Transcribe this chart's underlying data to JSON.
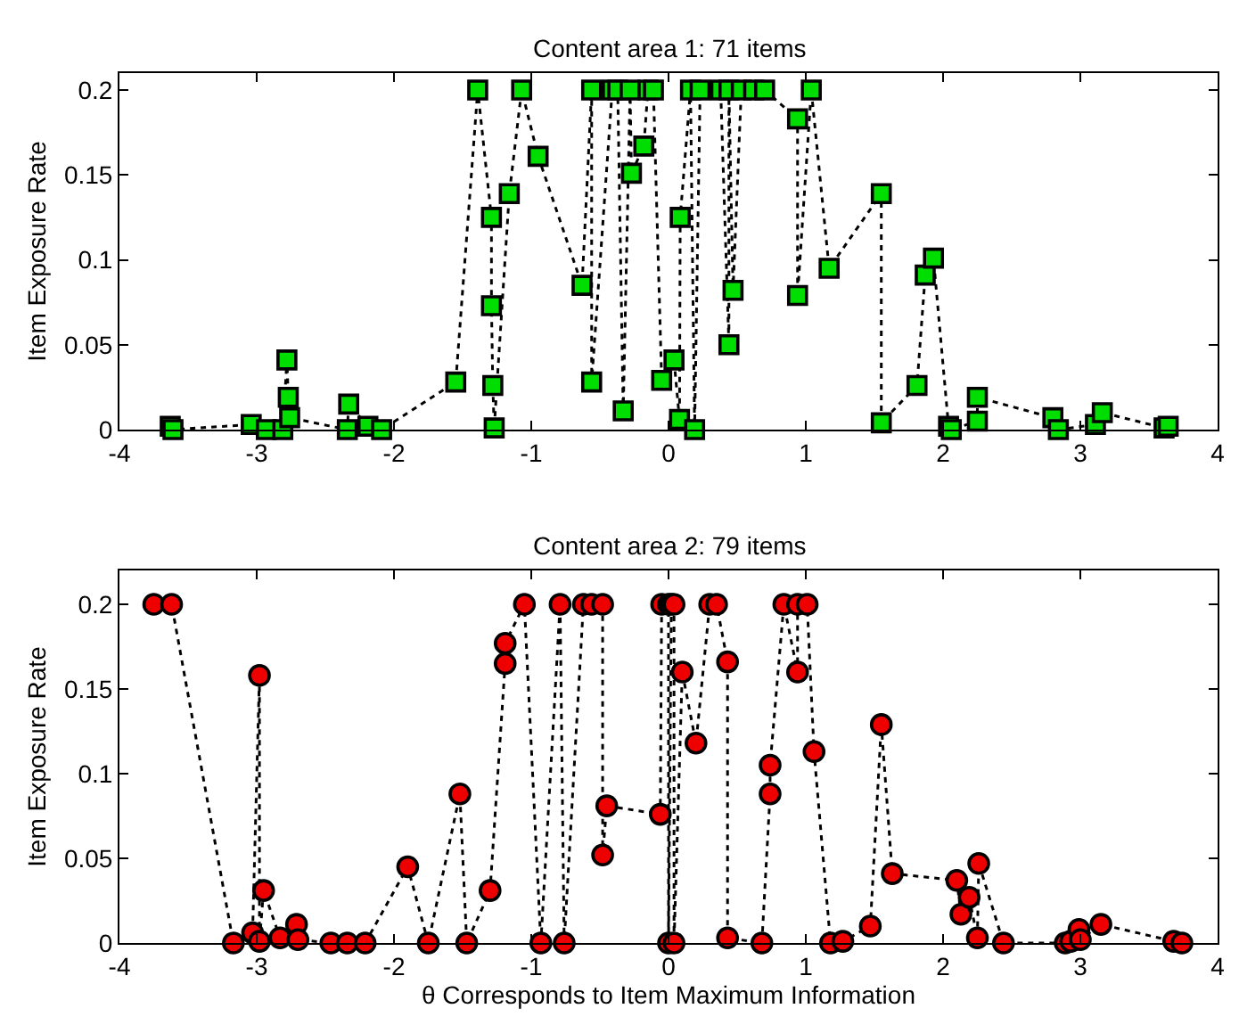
{
  "chart_data": [
    {
      "type": "line",
      "title": "Content area 1: 71 items",
      "ylabel": "Item Exposure Rate",
      "marker": "square",
      "line_style": "dotted",
      "grid": false,
      "xlim": [
        -4,
        4
      ],
      "xticks": [
        -4,
        -3,
        -2,
        -1,
        0,
        1,
        2,
        3,
        4
      ],
      "ylim": [
        0,
        0.21
      ],
      "yticks": [
        0,
        0.05,
        0.1,
        0.15,
        0.2
      ],
      "series": [
        {
          "color": "#00dd00",
          "x": [
            -3.63,
            -3.61,
            -3.04,
            -2.93,
            -2.81,
            -2.78,
            -2.77,
            -2.76,
            -2.34,
            -2.33,
            -2.19,
            -2.09,
            -1.55,
            -1.39,
            -1.29,
            -1.29,
            -1.28,
            -1.27,
            -1.16,
            -1.07,
            -0.95,
            -0.63,
            -0.56,
            -0.56,
            -0.41,
            -0.37,
            -0.33,
            -0.28,
            -0.27,
            -0.18,
            -0.15,
            -0.11,
            -0.05,
            0.04,
            0.08,
            0.085,
            0.16,
            0.19,
            0.23,
            0.38,
            0.44,
            0.44,
            0.47,
            0.53,
            0.62,
            0.7,
            0.94,
            0.94,
            1.04,
            1.17,
            1.55,
            1.55,
            1.81,
            1.87,
            1.93,
            2.04,
            2.06,
            2.25,
            2.25,
            2.8,
            2.84,
            3.11,
            3.16,
            3.61,
            3.64
          ],
          "values": [
            0.002,
            0,
            0.003,
            0,
            0,
            0.041,
            0.019,
            0.007,
            0,
            0.015,
            0.002,
            0,
            0.028,
            0.2,
            0.125,
            0.073,
            0.026,
            0.001,
            0.139,
            0.2,
            0.161,
            0.085,
            0.2,
            0.028,
            0.2,
            0.2,
            0.011,
            0.2,
            0.151,
            0.167,
            0.2,
            0.2,
            0.029,
            0.041,
            0.006,
            0.125,
            0.2,
            0,
            0.2,
            0.2,
            0.05,
            0.2,
            0.082,
            0.2,
            0.2,
            0.2,
            0.183,
            0.079,
            0.2,
            0.095,
            0.139,
            0.004,
            0.026,
            0.091,
            0.101,
            0.002,
            0,
            0.005,
            0.019,
            0.007,
            0,
            0.003,
            0.01,
            0.001,
            0.002
          ]
        }
      ]
    },
    {
      "type": "line",
      "title": "Content area 2: 79 items",
      "ylabel": "Item Exposure Rate",
      "xlabel": "θ Corresponds to Item Maximum Information",
      "marker": "circle",
      "line_style": "dotted",
      "grid": false,
      "xlim": [
        -4,
        4
      ],
      "xticks": [
        -4,
        -3,
        -2,
        -1,
        0,
        1,
        2,
        3,
        4
      ],
      "ylim": [
        0,
        0.22
      ],
      "yticks": [
        0,
        0.05,
        0.1,
        0.15,
        0.2
      ],
      "series": [
        {
          "color": "#ee0000",
          "x": [
            -3.75,
            -3.62,
            -3.17,
            -3.03,
            -2.98,
            -2.98,
            -2.95,
            -2.83,
            -2.71,
            -2.7,
            -2.46,
            -2.34,
            -2.21,
            -1.9,
            -1.75,
            -1.52,
            -1.47,
            -1.3,
            -1.19,
            -1.19,
            -1.05,
            -0.93,
            -0.79,
            -0.76,
            -0.62,
            -0.56,
            -0.48,
            -0.48,
            -0.45,
            -0.06,
            -0.05,
            0.0,
            0.0,
            0.02,
            0.04,
            0.04,
            0.1,
            0.2,
            0.3,
            0.35,
            0.43,
            0.43,
            0.68,
            0.74,
            0.74,
            0.84,
            0.94,
            0.94,
            1.01,
            1.06,
            1.18,
            1.27,
            1.47,
            1.55,
            1.63,
            2.1,
            2.13,
            2.19,
            2.25,
            2.26,
            2.44,
            2.89,
            2.93,
            2.99,
            3.0,
            3.15,
            3.68,
            3.74
          ],
          "values": [
            0.2,
            0.2,
            0,
            0.006,
            0.158,
            0.001,
            0.031,
            0.003,
            0.011,
            0.002,
            0,
            0,
            0,
            0.045,
            0,
            0.088,
            0,
            0.031,
            0.165,
            0.177,
            0.2,
            0,
            0.2,
            0,
            0.2,
            0.2,
            0.2,
            0.052,
            0.081,
            0.076,
            0.2,
            0.2,
            0,
            0.2,
            0.2,
            0,
            0.16,
            0.118,
            0.2,
            0.2,
            0.166,
            0.003,
            0,
            0.088,
            0.105,
            0.2,
            0.16,
            0.2,
            0.2,
            0.113,
            0,
            0.001,
            0.01,
            0.129,
            0.041,
            0.037,
            0.017,
            0.027,
            0.003,
            0.047,
            0,
            0,
            0.001,
            0.008,
            0.002,
            0.011,
            0.001,
            0
          ]
        }
      ]
    }
  ]
}
